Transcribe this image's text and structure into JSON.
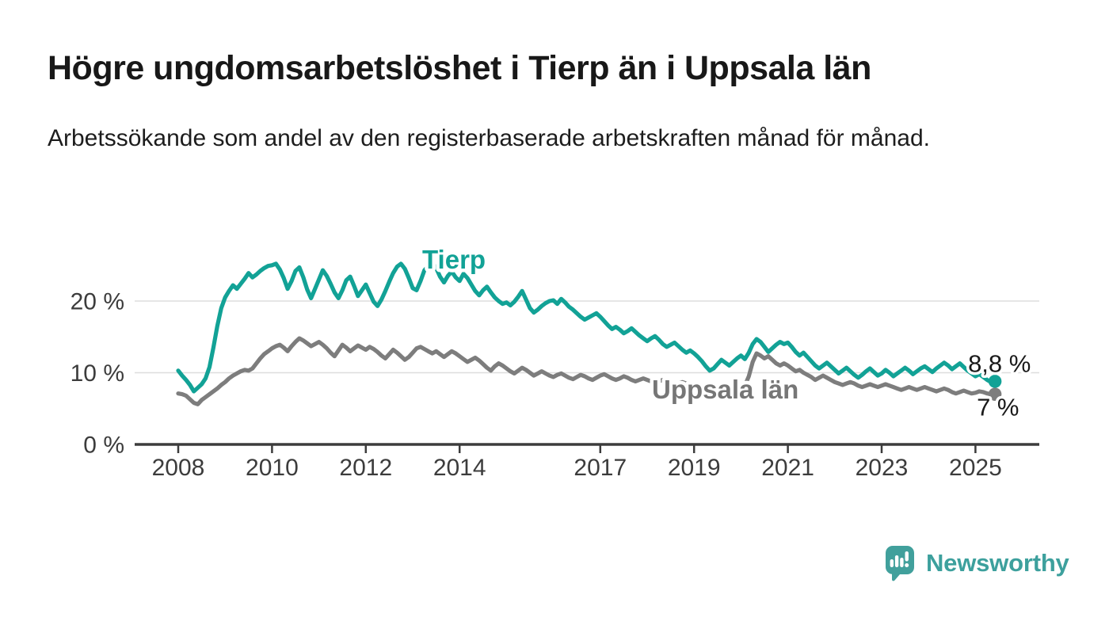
{
  "header": {
    "title": "Högre ungdomsarbetslöshet i Tierp än i Uppsala län",
    "subtitle": "Arbetssökande som andel av den registerbaserade arbetskraften månad för månad."
  },
  "footer": {
    "brand": "Newsworthy"
  },
  "colors": {
    "tierp_line": "#12a296",
    "uppsala_line": "#7d7d7d",
    "uppsala_label": "#767676",
    "axis": "#3c3c3c",
    "gridline": "#dedede",
    "end_label_text": "#1a1a1a",
    "logo_teal": "#41a09c"
  },
  "chart_data": {
    "type": "line",
    "title": "Högre ungdomsarbetslöshet i Tierp än i Uppsala län",
    "subtitle": "Arbetssökande som andel av den registerbaserade arbetskraften månad för månad.",
    "unit": "%",
    "frequency": "monthly",
    "x_start": "2008-01",
    "x_end": "2025-06",
    "xlim": [
      2008,
      2025.5
    ],
    "ylim": [
      0,
      28
    ],
    "grid": "horizontal-only",
    "legend": "inline-labels",
    "xticks": [
      2008,
      2010,
      2012,
      2014,
      2017,
      2019,
      2021,
      2023,
      2025
    ],
    "yticks": [
      {
        "value": 0,
        "label": "0 %"
      },
      {
        "value": 10,
        "label": "10 %"
      },
      {
        "value": 20,
        "label": "20 %"
      }
    ],
    "series": [
      {
        "name": "Tierp",
        "color": "#12a296",
        "end_label": "8,8 %",
        "last_value": 8.8,
        "values": [
          10.3,
          9.6,
          9.0,
          8.3,
          7.4,
          7.9,
          8.4,
          9.2,
          10.8,
          13.5,
          16.5,
          19.0,
          20.5,
          21.4,
          22.2,
          21.7,
          22.4,
          23.1,
          23.9,
          23.3,
          23.7,
          24.2,
          24.6,
          24.9,
          25.0,
          25.2,
          24.4,
          23.2,
          21.7,
          22.8,
          24.2,
          24.7,
          23.3,
          21.6,
          20.4,
          21.7,
          23.0,
          24.3,
          23.5,
          22.4,
          21.2,
          20.4,
          21.5,
          22.9,
          23.4,
          22.1,
          20.7,
          21.5,
          22.3,
          21.1,
          19.9,
          19.3,
          20.2,
          21.4,
          22.7,
          23.9,
          24.8,
          25.2,
          24.5,
          23.2,
          21.8,
          21.5,
          22.8,
          24.3,
          24.9,
          25.3,
          24.6,
          23.4,
          22.6,
          23.5,
          24.1,
          23.3,
          22.8,
          23.8,
          23.2,
          22.3,
          21.4,
          20.8,
          21.5,
          22.0,
          21.2,
          20.5,
          20.0,
          19.6,
          19.8,
          19.4,
          19.9,
          20.6,
          21.4,
          20.2,
          19.0,
          18.4,
          18.8,
          19.3,
          19.7,
          20.0,
          20.1,
          19.6,
          20.3,
          19.8,
          19.2,
          18.8,
          18.3,
          17.8,
          17.4,
          17.7,
          18.0,
          18.3,
          17.8,
          17.2,
          16.6,
          16.1,
          16.4,
          16.0,
          15.5,
          15.8,
          16.2,
          15.7,
          15.2,
          14.8,
          14.4,
          14.8,
          15.1,
          14.6,
          14.0,
          13.6,
          13.9,
          14.2,
          13.7,
          13.2,
          12.8,
          13.1,
          12.7,
          12.2,
          11.6,
          10.9,
          10.3,
          10.6,
          11.2,
          11.8,
          11.4,
          11.0,
          11.5,
          12.0,
          12.4,
          11.9,
          12.8,
          14.0,
          14.7,
          14.3,
          13.6,
          12.9,
          13.4,
          13.9,
          14.3,
          14.0,
          14.2,
          13.6,
          12.9,
          12.4,
          12.8,
          12.2,
          11.6,
          11.0,
          10.6,
          11.0,
          11.4,
          10.9,
          10.4,
          9.9,
          10.3,
          10.7,
          10.2,
          9.7,
          9.3,
          9.7,
          10.2,
          10.6,
          10.1,
          9.6,
          9.9,
          10.4,
          10.0,
          9.5,
          9.9,
          10.3,
          10.7,
          10.3,
          9.8,
          10.2,
          10.6,
          10.9,
          10.5,
          10.1,
          10.6,
          11.0,
          11.4,
          11.0,
          10.5,
          10.9,
          11.3,
          10.8,
          10.3,
          9.9,
          9.5,
          9.8,
          9.4,
          9.0,
          8.7,
          8.8
        ]
      },
      {
        "name": "Uppsala län",
        "color": "#7d7d7d",
        "end_label": "7 %",
        "last_value": 7.0,
        "values": [
          7.1,
          7.0,
          6.8,
          6.3,
          5.8,
          5.6,
          6.2,
          6.6,
          7.0,
          7.4,
          7.8,
          8.3,
          8.7,
          9.2,
          9.6,
          9.9,
          10.2,
          10.4,
          10.3,
          10.6,
          11.3,
          12.0,
          12.6,
          13.0,
          13.4,
          13.7,
          13.9,
          13.5,
          13.0,
          13.7,
          14.3,
          14.8,
          14.5,
          14.1,
          13.7,
          14.0,
          14.3,
          13.9,
          13.4,
          12.8,
          12.3,
          13.1,
          13.9,
          13.5,
          13.0,
          13.4,
          13.8,
          13.5,
          13.2,
          13.6,
          13.3,
          12.9,
          12.4,
          12.0,
          12.6,
          13.2,
          12.8,
          12.3,
          11.8,
          12.2,
          12.8,
          13.4,
          13.6,
          13.3,
          13.0,
          12.7,
          13.0,
          12.6,
          12.2,
          12.6,
          13.0,
          12.7,
          12.3,
          11.9,
          11.5,
          11.8,
          12.1,
          11.7,
          11.2,
          10.7,
          10.3,
          10.9,
          11.3,
          11.0,
          10.6,
          10.2,
          9.9,
          10.3,
          10.7,
          10.4,
          10.0,
          9.6,
          9.9,
          10.2,
          9.9,
          9.6,
          9.4,
          9.7,
          9.9,
          9.6,
          9.3,
          9.1,
          9.4,
          9.7,
          9.5,
          9.2,
          9.0,
          9.3,
          9.6,
          9.8,
          9.5,
          9.2,
          9.0,
          9.2,
          9.5,
          9.3,
          9.0,
          8.8,
          9.0,
          9.2,
          9.0,
          8.8,
          8.6,
          8.8,
          9.0,
          8.7,
          8.5,
          8.3,
          8.5,
          8.7,
          8.5,
          8.3,
          8.4,
          8.2,
          8.0,
          8.2,
          8.0,
          7.8,
          8.0,
          8.2,
          8.0,
          7.8,
          8.0,
          8.2,
          8.4,
          8.2,
          9.5,
          11.5,
          12.7,
          12.4,
          12.0,
          12.3,
          11.8,
          11.3,
          11.0,
          11.3,
          11.0,
          10.6,
          10.2,
          10.4,
          10.0,
          9.7,
          9.4,
          9.0,
          9.3,
          9.6,
          9.3,
          9.0,
          8.7,
          8.5,
          8.3,
          8.5,
          8.7,
          8.5,
          8.2,
          8.0,
          8.2,
          8.4,
          8.2,
          8.0,
          8.2,
          8.4,
          8.2,
          8.0,
          7.8,
          7.6,
          7.8,
          8.0,
          7.8,
          7.6,
          7.8,
          8.0,
          7.8,
          7.6,
          7.4,
          7.6,
          7.8,
          7.6,
          7.3,
          7.1,
          7.3,
          7.5,
          7.3,
          7.1,
          7.2,
          7.4,
          7.3,
          7.1,
          7.0,
          7.0
        ]
      }
    ]
  }
}
